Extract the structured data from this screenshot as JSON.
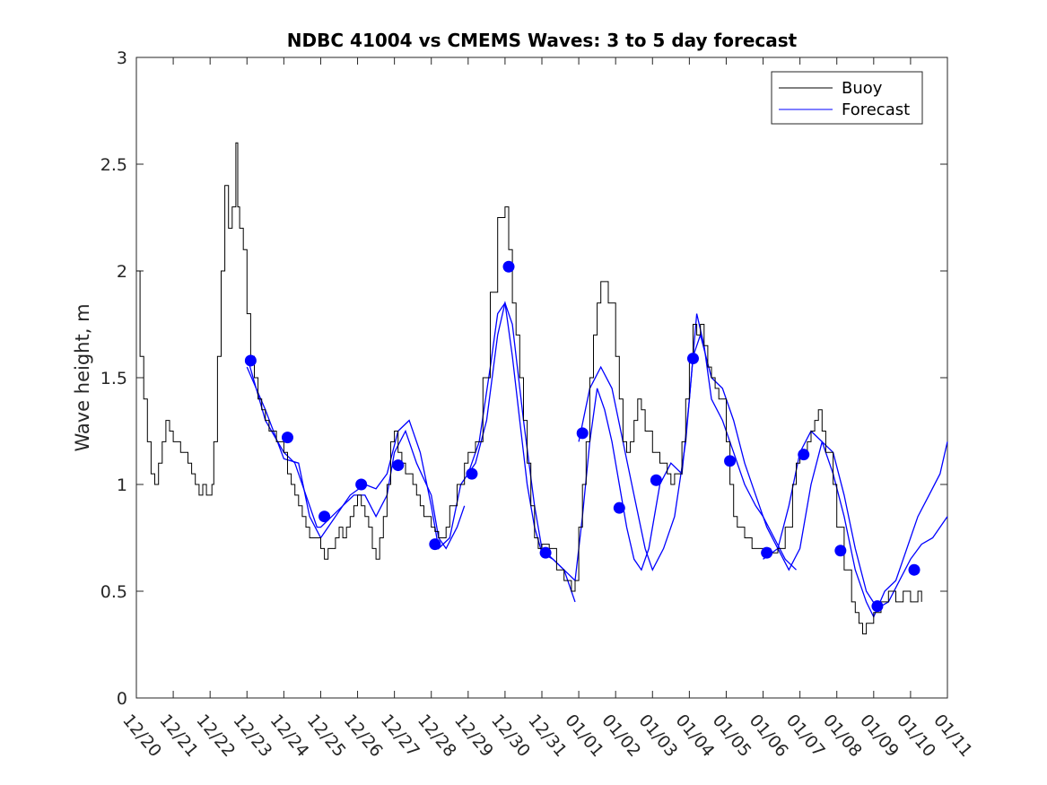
{
  "chart_data": {
    "type": "line",
    "title": "NDBC 41004 vs CMEMS Waves: 3 to 5 day forecast",
    "xlabel": "",
    "ylabel": "Wave height, m",
    "ylim": [
      0,
      3
    ],
    "xlim_days": [
      0,
      22
    ],
    "yticks": [
      "0",
      "0.5",
      "1",
      "1.5",
      "2",
      "2.5",
      "3"
    ],
    "xticks": [
      "12/20",
      "12/21",
      "12/22",
      "12/23",
      "12/24",
      "12/25",
      "12/26",
      "12/27",
      "12/28",
      "12/29",
      "12/30",
      "12/31",
      "01/01",
      "01/02",
      "01/03",
      "01/04",
      "01/05",
      "01/06",
      "01/07",
      "01/08",
      "01/09",
      "01/10",
      "01/11"
    ],
    "legend": {
      "position": "top-right",
      "entries": [
        "Buoy",
        "Forecast"
      ]
    },
    "colors": {
      "buoy": "#000000",
      "forecast": "#0000ff",
      "marker": "#0000ff"
    },
    "buoy": [
      [
        0.0,
        2.0
      ],
      [
        0.1,
        1.6
      ],
      [
        0.2,
        1.4
      ],
      [
        0.3,
        1.2
      ],
      [
        0.4,
        1.05
      ],
      [
        0.5,
        1.0
      ],
      [
        0.6,
        1.1
      ],
      [
        0.7,
        1.2
      ],
      [
        0.8,
        1.3
      ],
      [
        0.9,
        1.25
      ],
      [
        1.0,
        1.2
      ],
      [
        1.2,
        1.15
      ],
      [
        1.4,
        1.1
      ],
      [
        1.5,
        1.05
      ],
      [
        1.6,
        1.0
      ],
      [
        1.7,
        0.95
      ],
      [
        1.8,
        1.0
      ],
      [
        1.9,
        0.95
      ],
      [
        2.0,
        0.95
      ],
      [
        2.05,
        1.0
      ],
      [
        2.1,
        1.2
      ],
      [
        2.2,
        1.6
      ],
      [
        2.3,
        2.0
      ],
      [
        2.4,
        2.4
      ],
      [
        2.5,
        2.2
      ],
      [
        2.6,
        2.3
      ],
      [
        2.7,
        2.6
      ],
      [
        2.75,
        2.3
      ],
      [
        2.8,
        2.2
      ],
      [
        2.9,
        2.1
      ],
      [
        3.0,
        1.8
      ],
      [
        3.1,
        1.6
      ],
      [
        3.2,
        1.5
      ],
      [
        3.3,
        1.4
      ],
      [
        3.4,
        1.35
      ],
      [
        3.5,
        1.3
      ],
      [
        3.6,
        1.25
      ],
      [
        3.8,
        1.2
      ],
      [
        4.0,
        1.15
      ],
      [
        4.1,
        1.05
      ],
      [
        4.2,
        1.0
      ],
      [
        4.3,
        0.95
      ],
      [
        4.4,
        0.9
      ],
      [
        4.5,
        0.85
      ],
      [
        4.6,
        0.8
      ],
      [
        4.7,
        0.75
      ],
      [
        4.8,
        0.75
      ],
      [
        5.0,
        0.7
      ],
      [
        5.1,
        0.65
      ],
      [
        5.2,
        0.7
      ],
      [
        5.4,
        0.75
      ],
      [
        5.5,
        0.8
      ],
      [
        5.6,
        0.75
      ],
      [
        5.7,
        0.8
      ],
      [
        5.8,
        0.85
      ],
      [
        5.9,
        0.9
      ],
      [
        6.0,
        0.95
      ],
      [
        6.1,
        0.9
      ],
      [
        6.2,
        0.85
      ],
      [
        6.3,
        0.8
      ],
      [
        6.4,
        0.7
      ],
      [
        6.5,
        0.65
      ],
      [
        6.6,
        0.75
      ],
      [
        6.7,
        0.85
      ],
      [
        6.8,
        1.0
      ],
      [
        6.9,
        1.2
      ],
      [
        7.0,
        1.25
      ],
      [
        7.1,
        1.15
      ],
      [
        7.2,
        1.1
      ],
      [
        7.3,
        1.05
      ],
      [
        7.5,
        1.0
      ],
      [
        7.6,
        0.95
      ],
      [
        7.7,
        0.9
      ],
      [
        7.8,
        0.85
      ],
      [
        8.0,
        0.8
      ],
      [
        8.1,
        0.78
      ],
      [
        8.2,
        0.75
      ],
      [
        8.4,
        0.8
      ],
      [
        8.5,
        0.9
      ],
      [
        8.7,
        1.0
      ],
      [
        8.9,
        1.1
      ],
      [
        9.0,
        1.15
      ],
      [
        9.2,
        1.2
      ],
      [
        9.4,
        1.5
      ],
      [
        9.6,
        1.9
      ],
      [
        9.8,
        2.25
      ],
      [
        10.0,
        2.3
      ],
      [
        10.1,
        2.1
      ],
      [
        10.2,
        1.85
      ],
      [
        10.3,
        1.7
      ],
      [
        10.4,
        1.5
      ],
      [
        10.5,
        1.3
      ],
      [
        10.6,
        1.1
      ],
      [
        10.7,
        0.9
      ],
      [
        10.8,
        0.75
      ],
      [
        10.9,
        0.7
      ],
      [
        11.0,
        0.72
      ],
      [
        11.2,
        0.7
      ],
      [
        11.4,
        0.6
      ],
      [
        11.6,
        0.55
      ],
      [
        11.8,
        0.5
      ],
      [
        11.9,
        0.55
      ],
      [
        12.0,
        0.8
      ],
      [
        12.1,
        1.0
      ],
      [
        12.2,
        1.2
      ],
      [
        12.3,
        1.5
      ],
      [
        12.4,
        1.7
      ],
      [
        12.5,
        1.85
      ],
      [
        12.6,
        1.95
      ],
      [
        12.8,
        1.85
      ],
      [
        13.0,
        1.6
      ],
      [
        13.1,
        1.4
      ],
      [
        13.2,
        1.2
      ],
      [
        13.3,
        1.15
      ],
      [
        13.4,
        1.2
      ],
      [
        13.5,
        1.3
      ],
      [
        13.6,
        1.4
      ],
      [
        13.7,
        1.35
      ],
      [
        13.8,
        1.25
      ],
      [
        14.0,
        1.15
      ],
      [
        14.2,
        1.1
      ],
      [
        14.4,
        1.05
      ],
      [
        14.5,
        1.0
      ],
      [
        14.6,
        1.05
      ],
      [
        14.8,
        1.2
      ],
      [
        14.9,
        1.4
      ],
      [
        15.0,
        1.6
      ],
      [
        15.1,
        1.75
      ],
      [
        15.2,
        1.7
      ],
      [
        15.3,
        1.75
      ],
      [
        15.4,
        1.65
      ],
      [
        15.5,
        1.55
      ],
      [
        15.6,
        1.5
      ],
      [
        15.7,
        1.45
      ],
      [
        15.8,
        1.4
      ],
      [
        16.0,
        1.2
      ],
      [
        16.1,
        1.0
      ],
      [
        16.2,
        0.85
      ],
      [
        16.3,
        0.8
      ],
      [
        16.5,
        0.75
      ],
      [
        16.7,
        0.7
      ],
      [
        17.0,
        0.7
      ],
      [
        17.2,
        0.68
      ],
      [
        17.4,
        0.7
      ],
      [
        17.6,
        0.8
      ],
      [
        17.8,
        1.0
      ],
      [
        17.9,
        1.1
      ],
      [
        18.0,
        1.15
      ],
      [
        18.2,
        1.2
      ],
      [
        18.3,
        1.25
      ],
      [
        18.4,
        1.3
      ],
      [
        18.5,
        1.35
      ],
      [
        18.6,
        1.25
      ],
      [
        18.7,
        1.15
      ],
      [
        18.9,
        1.0
      ],
      [
        19.0,
        0.8
      ],
      [
        19.2,
        0.6
      ],
      [
        19.4,
        0.45
      ],
      [
        19.5,
        0.4
      ],
      [
        19.6,
        0.35
      ],
      [
        19.7,
        0.3
      ],
      [
        19.8,
        0.35
      ],
      [
        20.0,
        0.4
      ],
      [
        20.2,
        0.45
      ],
      [
        20.4,
        0.5
      ],
      [
        20.6,
        0.45
      ],
      [
        20.8,
        0.5
      ],
      [
        21.0,
        0.45
      ],
      [
        21.2,
        0.5
      ],
      [
        21.3,
        0.45
      ]
    ],
    "forecast_segments": [
      [
        [
          3.0,
          1.6
        ],
        [
          3.5,
          1.3
        ],
        [
          4.0,
          1.15
        ],
        [
          4.3,
          1.1
        ],
        [
          4.6,
          0.95
        ],
        [
          4.9,
          0.8
        ],
        [
          5.0,
          0.8
        ],
        [
          5.3,
          0.85
        ],
        [
          5.6,
          0.9
        ],
        [
          5.9,
          0.95
        ],
        [
          6.2,
          0.95
        ],
        [
          6.5,
          0.85
        ],
        [
          6.8,
          0.95
        ],
        [
          7.0,
          1.15
        ],
        [
          7.3,
          1.25
        ],
        [
          7.6,
          1.1
        ],
        [
          8.0,
          0.95
        ],
        [
          8.2,
          0.75
        ],
        [
          8.4,
          0.7
        ],
        [
          8.7,
          0.8
        ],
        [
          8.9,
          0.9
        ]
      ],
      [
        [
          3.0,
          1.55
        ],
        [
          3.5,
          1.35
        ],
        [
          4.0,
          1.12
        ],
        [
          4.4,
          1.1
        ],
        [
          4.7,
          0.85
        ],
        [
          5.0,
          0.75
        ],
        [
          5.4,
          0.85
        ],
        [
          5.8,
          0.95
        ],
        [
          6.2,
          1.0
        ],
        [
          6.5,
          0.98
        ],
        [
          6.8,
          1.05
        ],
        [
          7.1,
          1.25
        ],
        [
          7.4,
          1.3
        ],
        [
          7.7,
          1.15
        ],
        [
          8.0,
          0.9
        ],
        [
          8.2,
          0.7
        ],
        [
          8.5,
          0.75
        ],
        [
          8.8,
          1.0
        ],
        [
          9.2,
          1.1
        ],
        [
          9.5,
          1.3
        ],
        [
          9.8,
          1.7
        ],
        [
          10.0,
          1.85
        ],
        [
          10.2,
          1.75
        ],
        [
          10.5,
          1.3
        ],
        [
          10.8,
          0.9
        ],
        [
          11.0,
          0.7
        ],
        [
          11.3,
          0.65
        ],
        [
          11.6,
          0.6
        ],
        [
          11.8,
          0.5
        ],
        [
          11.9,
          0.45
        ]
      ],
      [
        [
          9.0,
          1.05
        ],
        [
          9.3,
          1.2
        ],
        [
          9.6,
          1.55
        ],
        [
          9.8,
          1.8
        ],
        [
          10.0,
          1.85
        ],
        [
          10.2,
          1.6
        ],
        [
          10.4,
          1.3
        ],
        [
          10.6,
          1.0
        ],
        [
          10.8,
          0.8
        ],
        [
          11.0,
          0.68
        ],
        [
          11.3,
          0.65
        ],
        [
          11.6,
          0.6
        ],
        [
          11.9,
          0.55
        ],
        [
          12.1,
          0.85
        ],
        [
          12.3,
          1.2
        ],
        [
          12.5,
          1.45
        ],
        [
          12.7,
          1.35
        ],
        [
          12.9,
          1.2
        ],
        [
          13.1,
          1.0
        ],
        [
          13.3,
          0.8
        ],
        [
          13.5,
          0.65
        ],
        [
          13.7,
          0.6
        ],
        [
          13.9,
          0.7
        ],
        [
          14.2,
          1.0
        ],
        [
          14.5,
          1.1
        ],
        [
          14.8,
          1.05
        ],
        [
          15.0,
          1.4
        ],
        [
          15.2,
          1.8
        ],
        [
          15.4,
          1.65
        ],
        [
          15.6,
          1.4
        ],
        [
          15.9,
          1.3
        ],
        [
          16.2,
          1.15
        ],
        [
          16.5,
          1.0
        ],
        [
          16.8,
          0.9
        ],
        [
          17.0,
          0.85
        ],
        [
          17.3,
          0.75
        ],
        [
          17.6,
          0.65
        ],
        [
          17.9,
          0.6
        ]
      ],
      [
        [
          12.0,
          1.2
        ],
        [
          12.3,
          1.45
        ],
        [
          12.6,
          1.55
        ],
        [
          12.9,
          1.45
        ],
        [
          13.2,
          1.2
        ],
        [
          13.5,
          0.95
        ],
        [
          13.8,
          0.7
        ],
        [
          14.0,
          0.6
        ],
        [
          14.3,
          0.7
        ],
        [
          14.6,
          0.85
        ],
        [
          14.9,
          1.2
        ],
        [
          15.1,
          1.6
        ],
        [
          15.3,
          1.7
        ],
        [
          15.6,
          1.5
        ],
        [
          15.9,
          1.45
        ],
        [
          16.2,
          1.3
        ],
        [
          16.5,
          1.1
        ],
        [
          16.8,
          0.95
        ],
        [
          17.1,
          0.8
        ],
        [
          17.4,
          0.7
        ],
        [
          17.7,
          0.6
        ],
        [
          18.0,
          0.7
        ],
        [
          18.3,
          1.0
        ],
        [
          18.6,
          1.2
        ],
        [
          18.9,
          1.15
        ],
        [
          19.2,
          0.95
        ],
        [
          19.5,
          0.7
        ],
        [
          19.8,
          0.5
        ],
        [
          20.1,
          0.42
        ],
        [
          20.4,
          0.45
        ],
        [
          20.7,
          0.55
        ],
        [
          21.0,
          0.65
        ],
        [
          21.3,
          0.72
        ],
        [
          21.6,
          0.75
        ],
        [
          22.0,
          0.85
        ]
      ],
      [
        [
          17.0,
          0.65
        ],
        [
          17.4,
          0.7
        ],
        [
          17.7,
          0.9
        ],
        [
          18.0,
          1.15
        ],
        [
          18.3,
          1.25
        ],
        [
          18.6,
          1.2
        ],
        [
          18.9,
          1.05
        ],
        [
          19.2,
          0.85
        ],
        [
          19.5,
          0.6
        ],
        [
          19.8,
          0.45
        ],
        [
          20.0,
          0.38
        ],
        [
          20.3,
          0.5
        ],
        [
          20.6,
          0.55
        ],
        [
          20.9,
          0.7
        ],
        [
          21.2,
          0.85
        ],
        [
          21.5,
          0.95
        ],
        [
          21.8,
          1.05
        ],
        [
          22.0,
          1.2
        ]
      ]
    ],
    "markers": [
      [
        3.1,
        1.58
      ],
      [
        4.1,
        1.22
      ],
      [
        5.1,
        0.85
      ],
      [
        6.1,
        1.0
      ],
      [
        7.1,
        1.09
      ],
      [
        8.1,
        0.72
      ],
      [
        9.1,
        1.05
      ],
      [
        10.1,
        2.02
      ],
      [
        11.1,
        0.68
      ],
      [
        12.1,
        1.24
      ],
      [
        13.1,
        0.89
      ],
      [
        14.1,
        1.02
      ],
      [
        15.1,
        1.59
      ],
      [
        16.1,
        1.11
      ],
      [
        17.1,
        0.68
      ],
      [
        18.1,
        1.14
      ],
      [
        19.1,
        0.69
      ],
      [
        20.1,
        0.43
      ],
      [
        21.1,
        0.6
      ]
    ]
  }
}
